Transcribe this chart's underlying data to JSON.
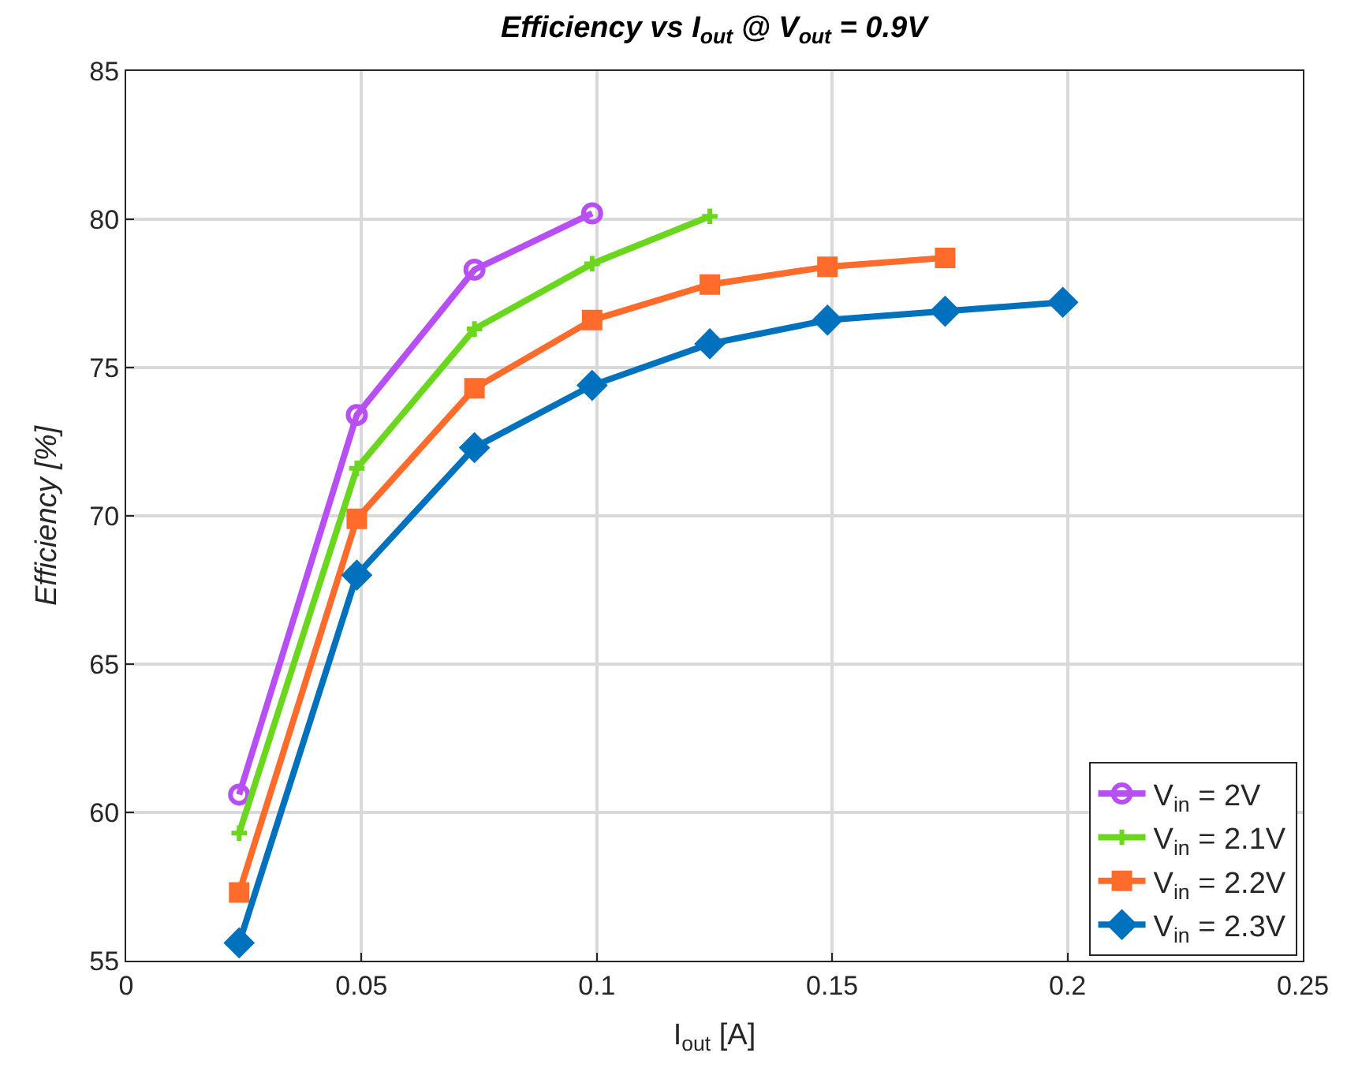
{
  "chart_data": {
    "type": "line",
    "title": "Efficiency vs I$_{out}$ @ V$_{out}$ = 0.9V",
    "xlabel": "I$_{out}$ [A]",
    "ylabel": "Efficiency [%]",
    "xlim": [
      0,
      0.25
    ],
    "xticks": [
      0,
      0.05,
      0.1,
      0.15,
      0.2,
      0.25
    ],
    "ylim": [
      55,
      85
    ],
    "yticks": [
      55,
      60,
      65,
      70,
      75,
      80,
      85
    ],
    "grid": true,
    "legend": "bottom right",
    "series": [
      {
        "name": "V$_{in}$ = 2V",
        "color": "#b84ff5",
        "marker": "circle",
        "x": [
          0.024,
          0.049,
          0.074,
          0.099
        ],
        "values": [
          60.6,
          73.4,
          78.3,
          80.2
        ]
      },
      {
        "name": "V$_{in}$ = 2.1V",
        "color": "#6ad61e",
        "marker": "cross",
        "x": [
          0.024,
          0.049,
          0.074,
          0.099,
          0.124
        ],
        "values": [
          59.3,
          71.6,
          76.3,
          78.5,
          80.1
        ]
      },
      {
        "name": "V$_{in}$ = 2.2V",
        "color": "#ff6b2b",
        "marker": "square",
        "x": [
          0.024,
          0.049,
          0.074,
          0.099,
          0.124,
          0.149,
          0.174
        ],
        "values": [
          57.3,
          69.9,
          74.3,
          76.6,
          77.8,
          78.4,
          78.7
        ]
      },
      {
        "name": "V$_{in}$ = 2.3V",
        "color": "#0072bd",
        "marker": "diamond",
        "x": [
          0.024,
          0.049,
          0.074,
          0.099,
          0.124,
          0.149,
          0.174,
          0.199
        ],
        "values": [
          55.6,
          68.0,
          72.3,
          74.4,
          75.8,
          76.6,
          76.9,
          77.2
        ]
      }
    ]
  }
}
